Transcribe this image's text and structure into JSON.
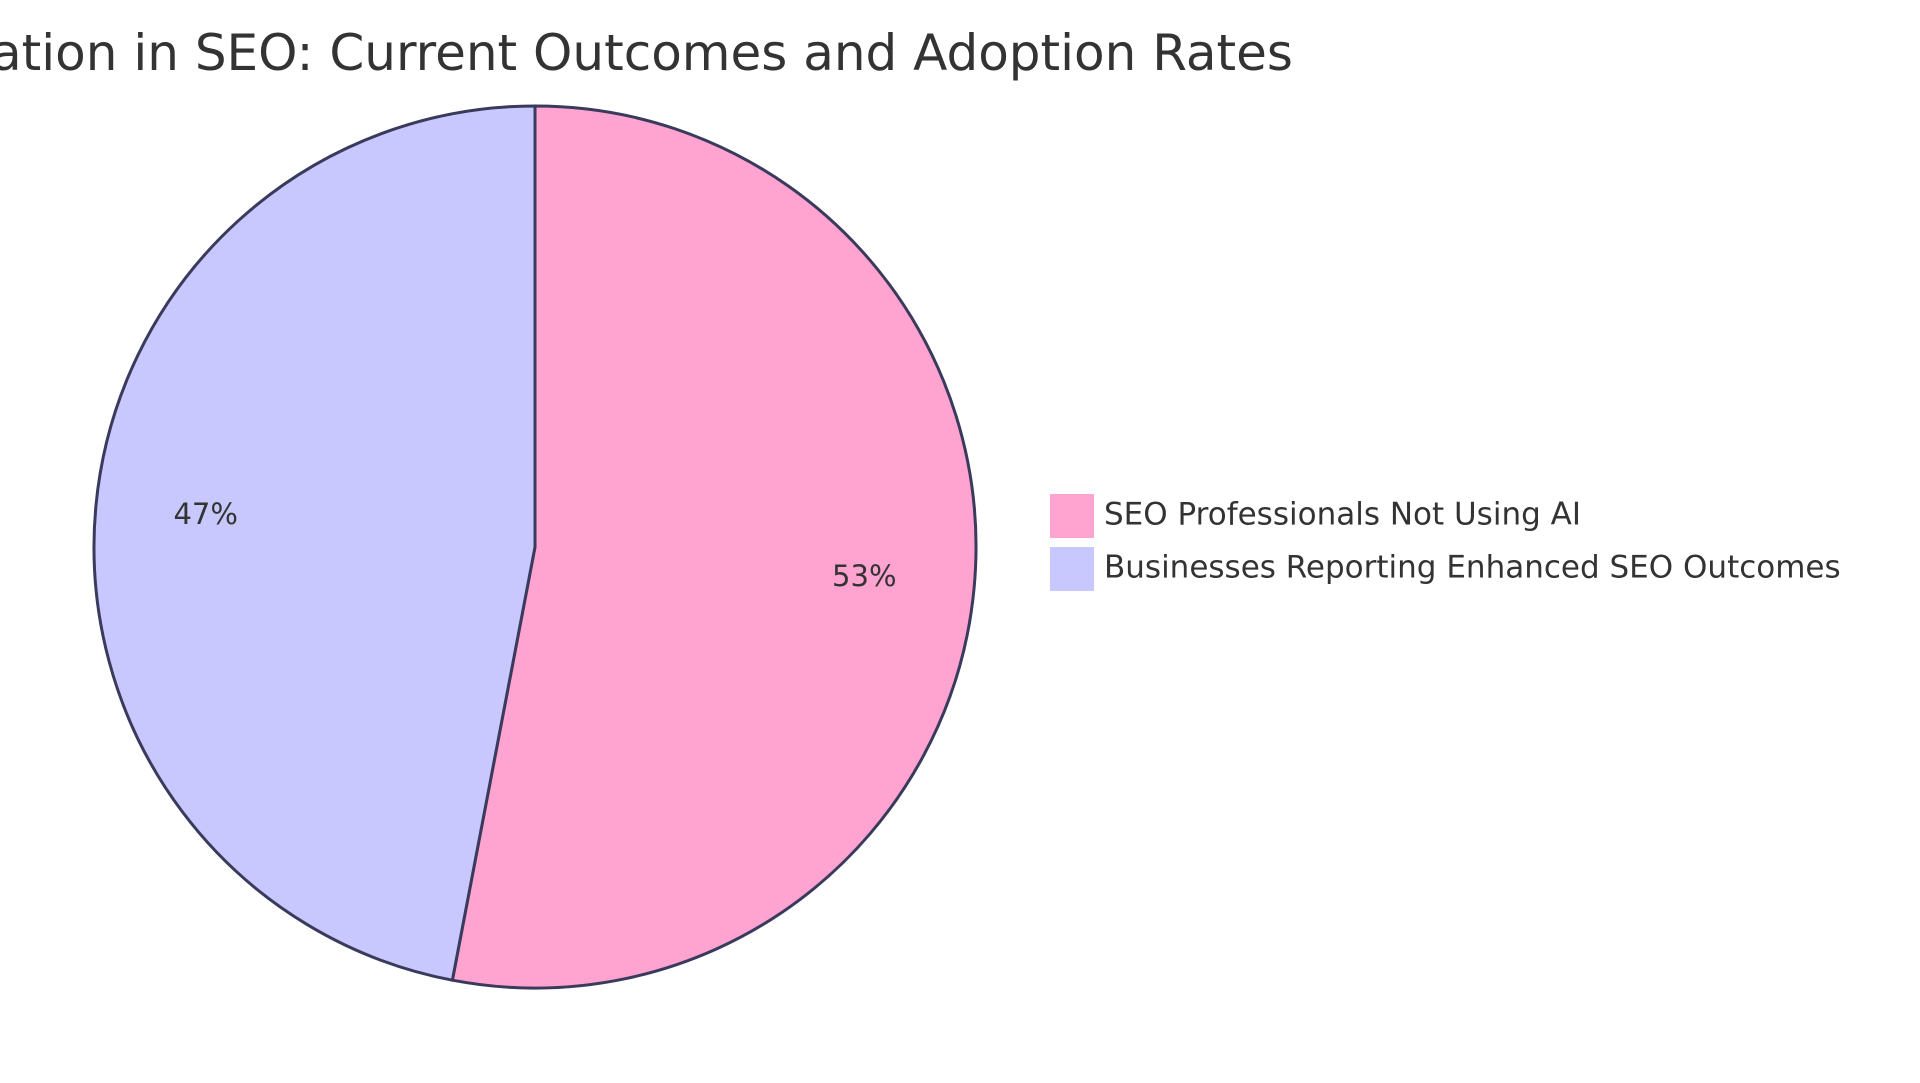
{
  "chart_data": {
    "type": "pie",
    "title": "AI Integration in SEO: Current Outcomes and Adoption Rates",
    "slices": [
      {
        "name": "SEO Professionals Not Using AI",
        "value": 53,
        "label": "53%",
        "color": "#ffa3d0"
      },
      {
        "name": "Businesses Reporting Enhanced SEO Outcomes",
        "value": 47,
        "label": "47%",
        "color": "#c8c8ff"
      }
    ],
    "legend": "right",
    "stroke_color": "#3a3a5c"
  }
}
